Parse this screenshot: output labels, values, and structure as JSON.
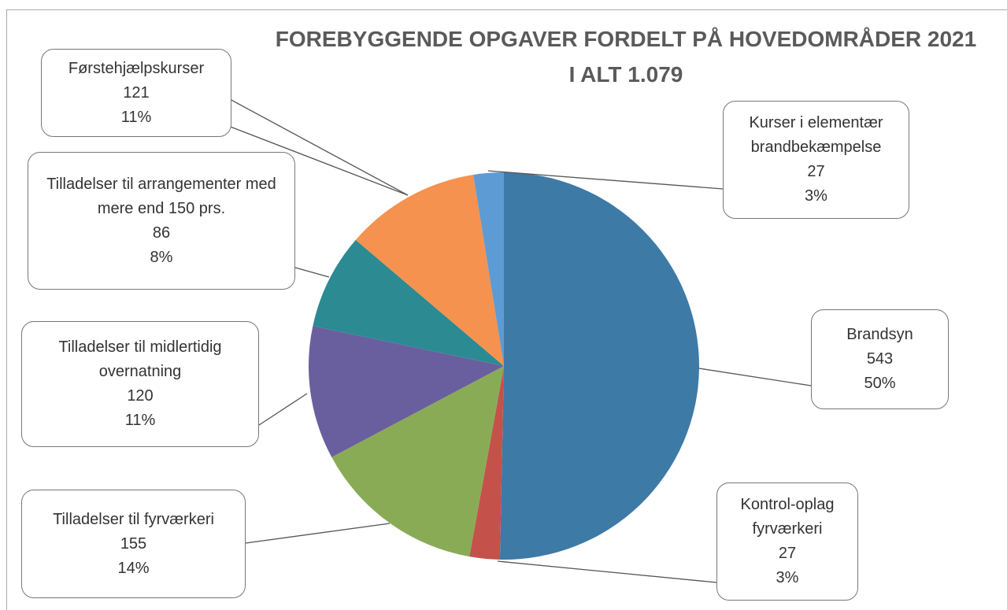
{
  "chart_data": {
    "type": "pie",
    "title": "FOREBYGGENDE OPGAVER FORDELT PÅ HOVEDOMRÅDER 2021",
    "subtitle": "I ALT 1.079",
    "categories": [
      "Brandsyn",
      "Kontrol-oplag fyrværkeri",
      "Tilladelser til fyrværkeri",
      "Tilladelser til midlertidig overnatning",
      "Tilladelser til arrangementer med mere end 150 prs.",
      "Førstehjælpskurser",
      "Kurser i elementær brandbekæmpelse"
    ],
    "values": [
      543,
      27,
      155,
      120,
      86,
      121,
      27
    ],
    "percent_labels": [
      "50%",
      "3%",
      "14%",
      "11%",
      "8%",
      "11%",
      "3%"
    ],
    "colors": [
      "#3d7aa6",
      "#c4524a",
      "#8aab56",
      "#6a5f9e",
      "#2b8a92",
      "#f5924f",
      "#5d9bd5"
    ]
  }
}
